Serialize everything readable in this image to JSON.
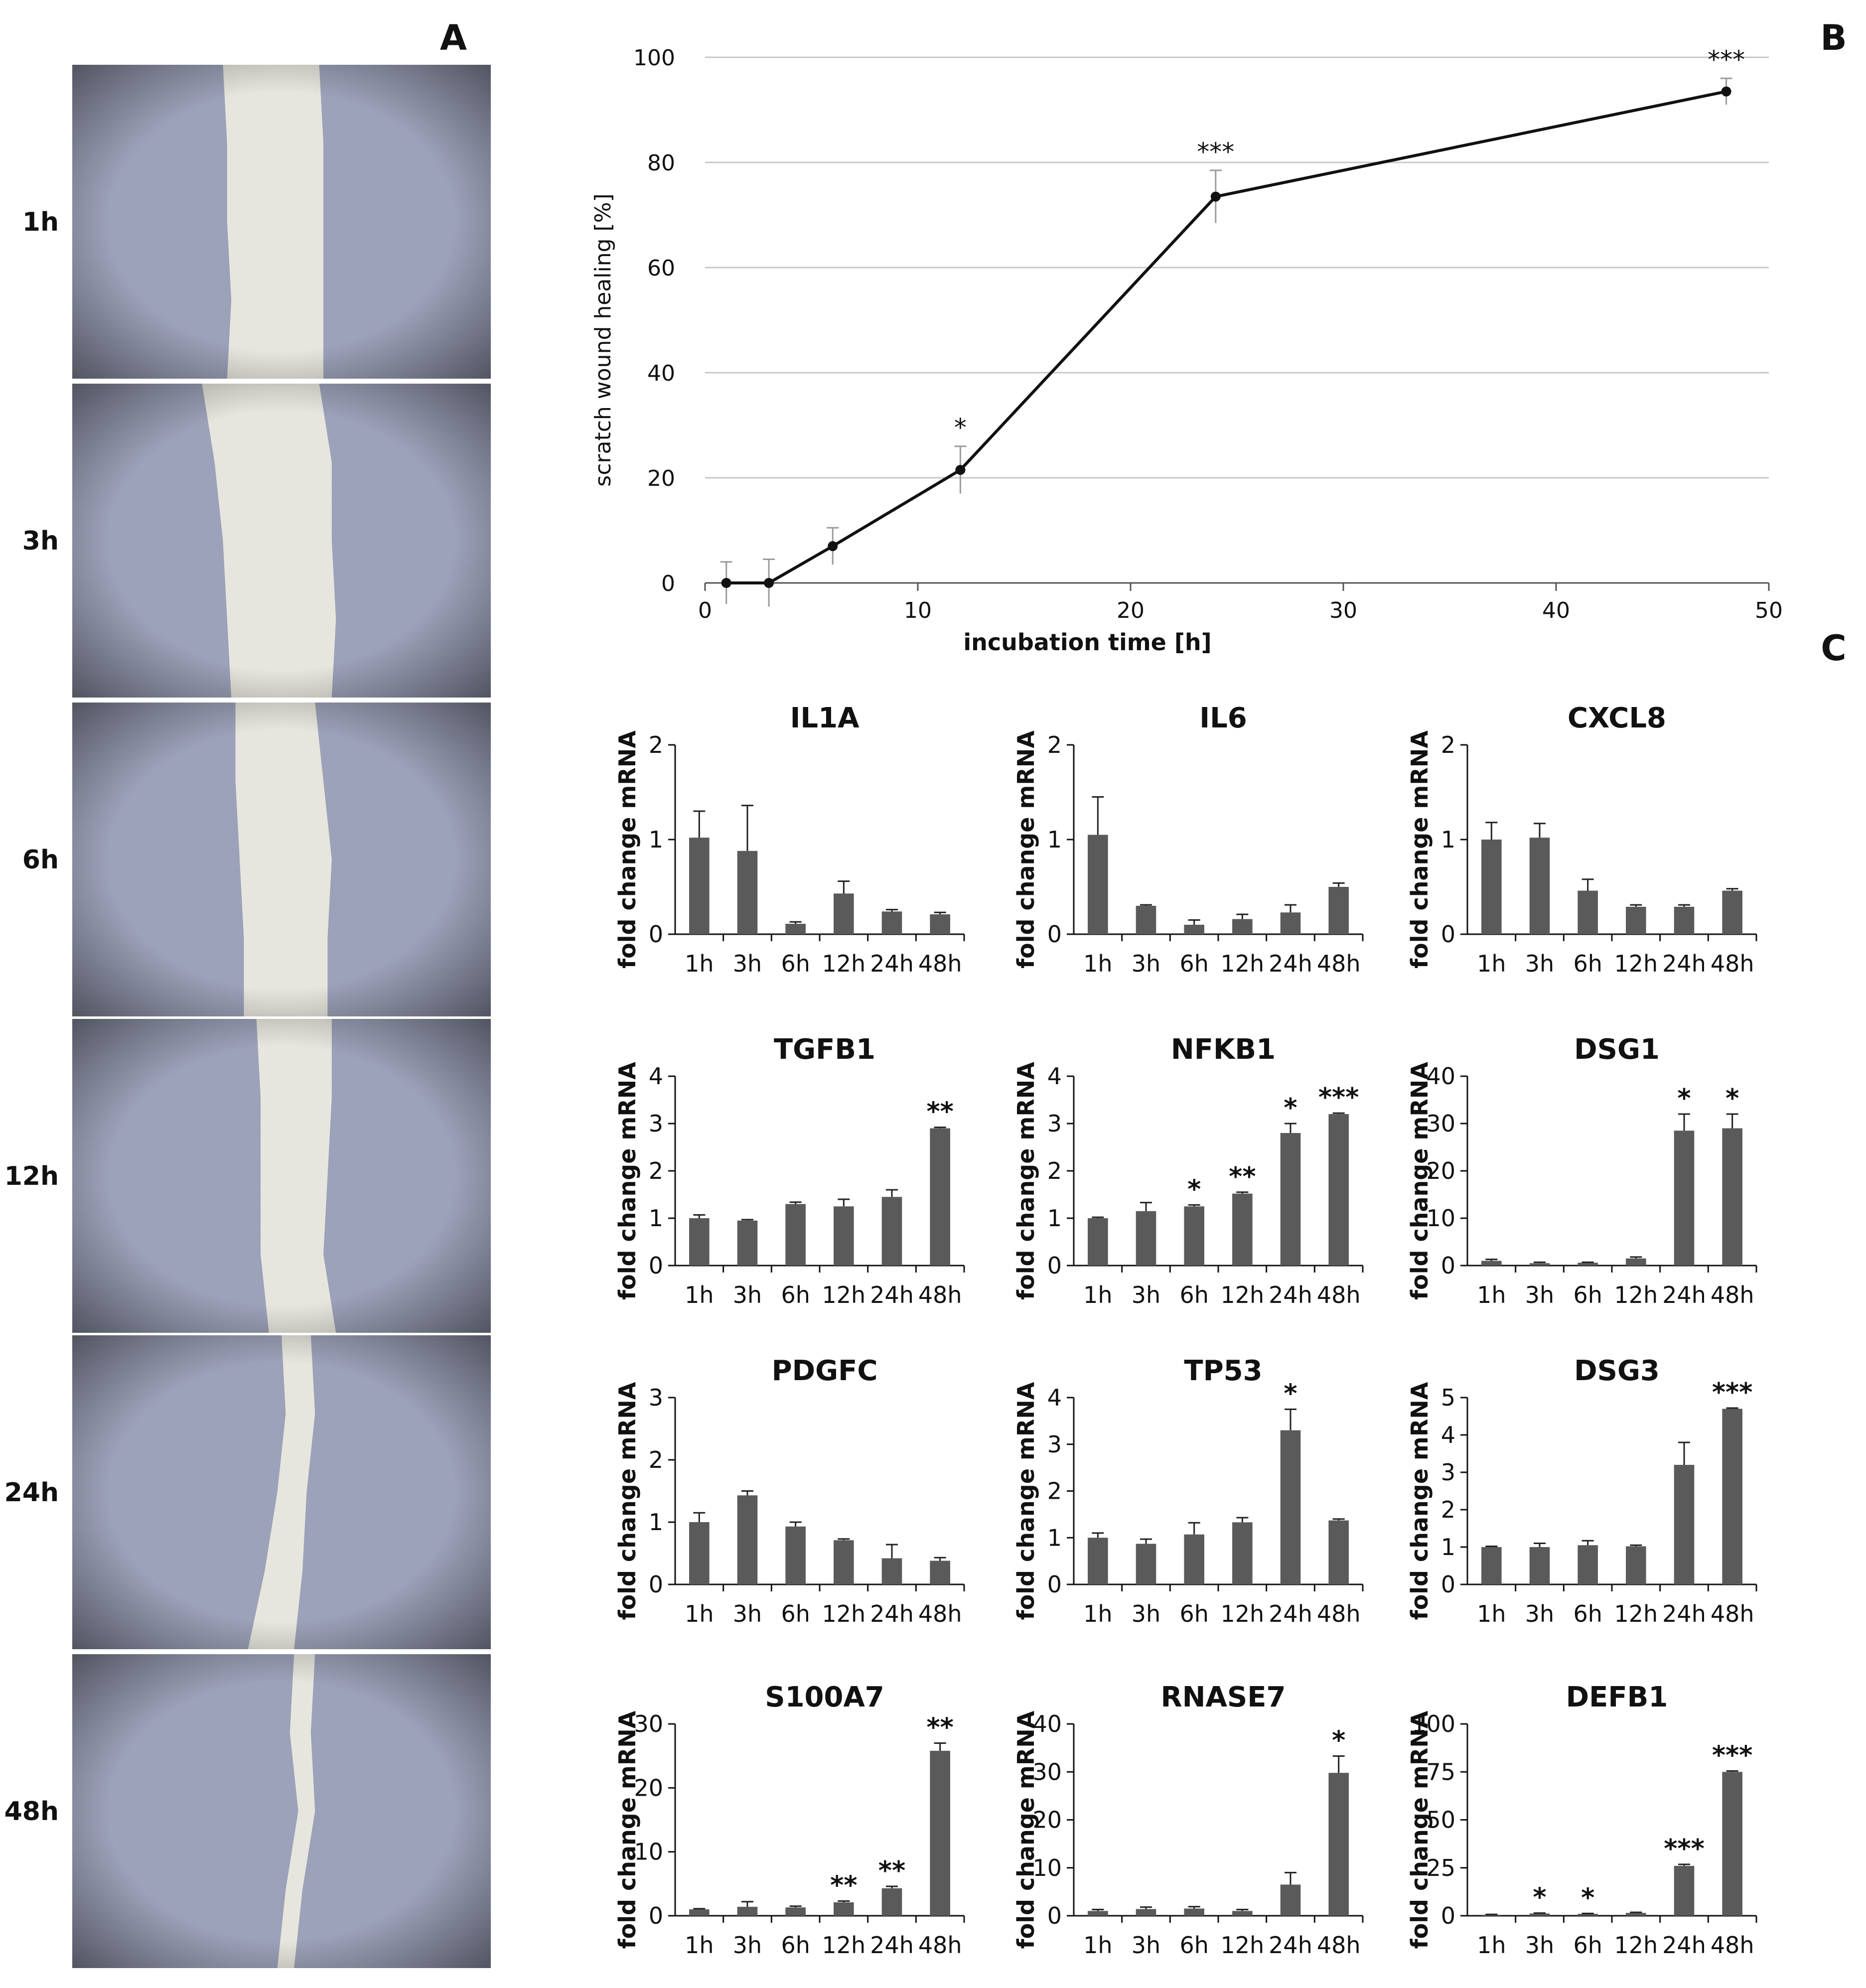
{
  "panel_labels": {
    "a": "A",
    "b": "B",
    "c": "C"
  },
  "micrographs": {
    "time_labels": [
      "1h",
      "3h",
      "6h",
      "12h",
      "24h",
      "48h"
    ]
  },
  "colors": {
    "bar": "#5a5a5a",
    "line": "#111111",
    "grid": "#c8c8c8",
    "micrograph_bg": "#9aa0b8",
    "wound": "#e7e6de"
  },
  "chart_data": [
    {
      "id": "B",
      "type": "line",
      "xlabel": "incubation time [h]",
      "ylabel": "scratch wound healing [%]",
      "xlim": [
        0,
        50
      ],
      "ylim": [
        0,
        100
      ],
      "xticks": [
        "0",
        "10",
        "20",
        "30",
        "40",
        "50"
      ],
      "yticks": [
        "0",
        "20",
        "40",
        "60",
        "80",
        "100"
      ],
      "grid": "horizontal",
      "x": [
        1,
        3,
        6,
        12,
        24,
        48
      ],
      "y": [
        0,
        0,
        7,
        21.5,
        73.5,
        93.5
      ],
      "error": [
        4,
        4.5,
        3.5,
        4.5,
        5,
        2.5
      ],
      "significance": [
        "",
        "",
        "",
        "*",
        "***",
        "***"
      ]
    },
    {
      "id": "C-IL1A",
      "type": "bar",
      "title": "IL1A",
      "ylabel": "fold change mRNA",
      "categories": [
        "1h",
        "3h",
        "6h",
        "12h",
        "24h",
        "48h"
      ],
      "ylim": [
        0,
        2
      ],
      "yticks": [
        "0",
        "1",
        "2"
      ],
      "values": [
        1.02,
        0.88,
        0.11,
        0.43,
        0.24,
        0.21
      ],
      "error": [
        0.28,
        0.48,
        0.02,
        0.13,
        0.02,
        0.02
      ],
      "significance": [
        "",
        "",
        "",
        "",
        "",
        ""
      ]
    },
    {
      "id": "C-IL6",
      "type": "bar",
      "title": "IL6",
      "ylabel": "fold change mRNA",
      "categories": [
        "1h",
        "3h",
        "6h",
        "12h",
        "24h",
        "48h"
      ],
      "ylim": [
        0,
        2
      ],
      "yticks": [
        "0",
        "1",
        "2"
      ],
      "values": [
        1.05,
        0.3,
        0.1,
        0.16,
        0.23,
        0.5
      ],
      "error": [
        0.4,
        0.01,
        0.05,
        0.05,
        0.08,
        0.04
      ],
      "significance": [
        "",
        "",
        "",
        "",
        "",
        ""
      ]
    },
    {
      "id": "C-CXCL8",
      "type": "bar",
      "title": "CXCL8",
      "ylabel": "fold change mRNA",
      "categories": [
        "1h",
        "3h",
        "6h",
        "12h",
        "24h",
        "48h"
      ],
      "ylim": [
        0,
        2
      ],
      "yticks": [
        "0",
        "1",
        "2"
      ],
      "values": [
        1.0,
        1.02,
        0.46,
        0.29,
        0.29,
        0.46
      ],
      "error": [
        0.18,
        0.15,
        0.12,
        0.02,
        0.02,
        0.02
      ],
      "significance": [
        "",
        "",
        "",
        "",
        "",
        ""
      ]
    },
    {
      "id": "C-TGFB1",
      "type": "bar",
      "title": "TGFB1",
      "ylabel": "fold change mRNA",
      "categories": [
        "1h",
        "3h",
        "6h",
        "12h",
        "24h",
        "48h"
      ],
      "ylim": [
        0,
        4
      ],
      "yticks": [
        "0",
        "1",
        "2",
        "3",
        "4"
      ],
      "values": [
        1.0,
        0.95,
        1.3,
        1.25,
        1.45,
        2.9
      ],
      "error": [
        0.07,
        0.02,
        0.04,
        0.15,
        0.15,
        0.02
      ],
      "significance": [
        "",
        "",
        "",
        "",
        "",
        "**"
      ]
    },
    {
      "id": "C-NFKB1",
      "type": "bar",
      "title": "NFKB1",
      "ylabel": "fold change mRNA",
      "categories": [
        "1h",
        "3h",
        "6h",
        "12h",
        "24h",
        "48h"
      ],
      "ylim": [
        0,
        4
      ],
      "yticks": [
        "0",
        "1",
        "2",
        "3",
        "4"
      ],
      "values": [
        1.0,
        1.15,
        1.25,
        1.52,
        2.8,
        3.2
      ],
      "error": [
        0.02,
        0.18,
        0.03,
        0.03,
        0.2,
        0.02
      ],
      "significance": [
        "",
        "",
        "*",
        "**",
        "*",
        "***"
      ]
    },
    {
      "id": "C-DSG1",
      "type": "bar",
      "title": "DSG1",
      "ylabel": "fold change mRNA",
      "categories": [
        "1h",
        "3h",
        "6h",
        "12h",
        "24h",
        "48h"
      ],
      "ylim": [
        0,
        40
      ],
      "yticks": [
        "0",
        "10",
        "20",
        "30",
        "40"
      ],
      "values": [
        1.0,
        0.5,
        0.6,
        1.5,
        28.5,
        29.0
      ],
      "error": [
        0.3,
        0.2,
        0.1,
        0.3,
        3.5,
        3.0
      ],
      "significance": [
        "",
        "",
        "",
        "",
        "*",
        "*"
      ]
    },
    {
      "id": "C-PDGFC",
      "type": "bar",
      "title": "PDGFC",
      "ylabel": "fold change mRNA",
      "categories": [
        "1h",
        "3h",
        "6h",
        "12h",
        "24h",
        "48h"
      ],
      "ylim": [
        0,
        3
      ],
      "yticks": [
        "0",
        "1",
        "2",
        "3"
      ],
      "values": [
        1.0,
        1.43,
        0.93,
        0.71,
        0.42,
        0.38
      ],
      "error": [
        0.15,
        0.07,
        0.07,
        0.02,
        0.22,
        0.05
      ],
      "significance": [
        "",
        "",
        "",
        "",
        "",
        ""
      ]
    },
    {
      "id": "C-TP53",
      "type": "bar",
      "title": "TP53",
      "ylabel": "fold change mRNA",
      "categories": [
        "1h",
        "3h",
        "6h",
        "12h",
        "24h",
        "48h"
      ],
      "ylim": [
        0,
        4
      ],
      "yticks": [
        "0",
        "1",
        "2",
        "3",
        "4"
      ],
      "values": [
        1.0,
        0.87,
        1.07,
        1.33,
        3.3,
        1.37
      ],
      "error": [
        0.1,
        0.1,
        0.25,
        0.1,
        0.45,
        0.03
      ],
      "significance": [
        "",
        "",
        "",
        "",
        "*",
        ""
      ]
    },
    {
      "id": "C-DSG3",
      "type": "bar",
      "title": "DSG3",
      "ylabel": "fold change mRNA",
      "categories": [
        "1h",
        "3h",
        "6h",
        "12h",
        "24h",
        "48h"
      ],
      "ylim": [
        0,
        5
      ],
      "yticks": [
        "0",
        "1",
        "2",
        "3",
        "4",
        "5"
      ],
      "values": [
        1.0,
        1.0,
        1.05,
        1.02,
        3.2,
        4.7
      ],
      "error": [
        0.02,
        0.1,
        0.12,
        0.03,
        0.6,
        0.02
      ],
      "significance": [
        "",
        "",
        "",
        "",
        "",
        "***"
      ]
    },
    {
      "id": "C-S100A7",
      "type": "bar",
      "title": "S100A7",
      "ylabel": "fold change mRNA",
      "categories": [
        "1h",
        "3h",
        "6h",
        "12h",
        "24h",
        "48h"
      ],
      "ylim": [
        0,
        30
      ],
      "yticks": [
        "0",
        "10",
        "20",
        "30"
      ],
      "values": [
        1.0,
        1.4,
        1.3,
        2.1,
        4.3,
        25.8
      ],
      "error": [
        0.1,
        0.8,
        0.2,
        0.2,
        0.3,
        1.2
      ],
      "significance": [
        "",
        "",
        "",
        "**",
        "**",
        "**"
      ]
    },
    {
      "id": "C-RNASE7",
      "type": "bar",
      "title": "RNASE7",
      "ylabel": "fold change mRNA",
      "categories": [
        "1h",
        "3h",
        "6h",
        "12h",
        "24h",
        "48h"
      ],
      "ylim": [
        0,
        40
      ],
      "yticks": [
        "0",
        "10",
        "20",
        "30",
        "40"
      ],
      "values": [
        1.0,
        1.4,
        1.5,
        1.0,
        6.5,
        29.8
      ],
      "error": [
        0.3,
        0.4,
        0.4,
        0.3,
        2.5,
        3.5
      ],
      "significance": [
        "",
        "",
        "",
        "",
        "",
        "*"
      ]
    },
    {
      "id": "C-DEFB1",
      "type": "bar",
      "title": "DEFB1",
      "ylabel": "fold change mRNA",
      "categories": [
        "1h",
        "3h",
        "6h",
        "12h",
        "24h",
        "48h"
      ],
      "ylim": [
        0,
        100
      ],
      "yticks": [
        "0",
        "25",
        "50",
        "75",
        "100"
      ],
      "values": [
        0.5,
        1.2,
        1.0,
        1.5,
        26.0,
        75.0
      ],
      "error": [
        0.2,
        0.2,
        0.2,
        0.3,
        0.8,
        0.5
      ],
      "significance": [
        "",
        "*",
        "*",
        "",
        "***",
        "***"
      ]
    }
  ]
}
